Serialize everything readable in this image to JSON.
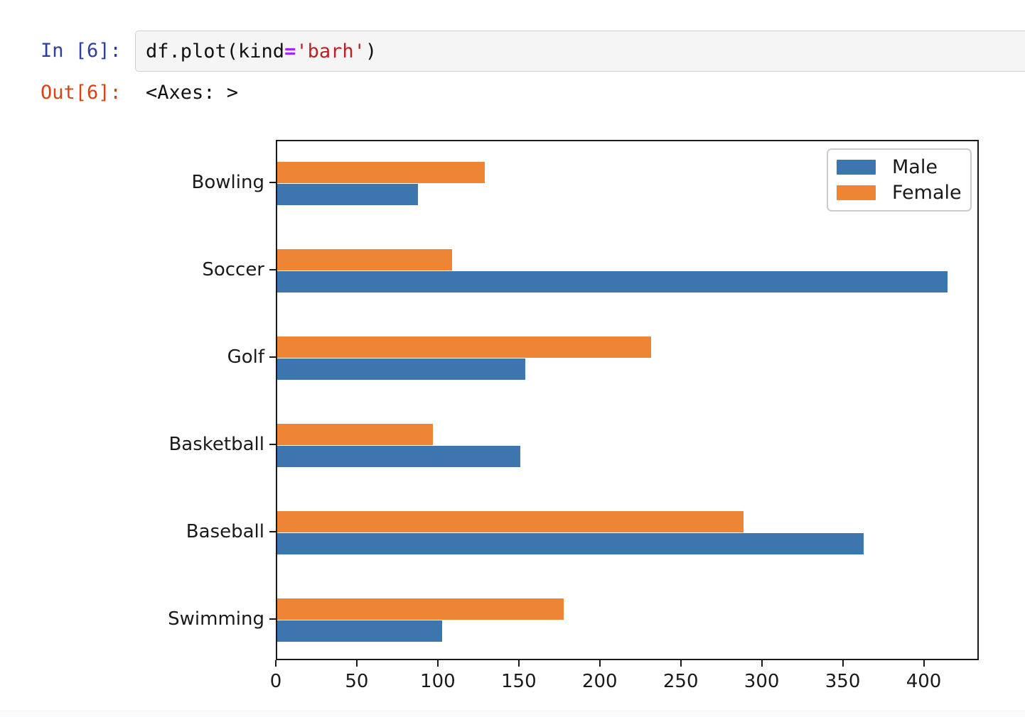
{
  "notebook": {
    "input_prompt": "In [6]:",
    "output_prompt": "Out[6]:",
    "code_tokens": [
      {
        "text": "df.plot(kind",
        "type": "plain"
      },
      {
        "text": "=",
        "type": "operator"
      },
      {
        "text": "'barh'",
        "type": "string"
      },
      {
        "text": ")",
        "type": "plain"
      }
    ],
    "output_text": "<Axes: >"
  },
  "colors": {
    "male_bar": "#3d76af",
    "female_bar": "#ee8535",
    "in_prompt": "#303f9f",
    "out_prompt": "#d84315",
    "operator_token": "#aa22ff",
    "string_token": "#ba2121",
    "axis_text": "#1a1a1a"
  },
  "chart_data": {
    "type": "bar",
    "orientation": "horizontal",
    "categories": [
      "Bowling",
      "Soccer",
      "Golf",
      "Basketball",
      "Baseball",
      "Swimming"
    ],
    "series": [
      {
        "name": "Male",
        "color": "#3d76af",
        "values": [
          87,
          414,
          153,
          150,
          362,
          102
        ]
      },
      {
        "name": "Female",
        "color": "#ee8535",
        "values": [
          128,
          108,
          231,
          96,
          288,
          177
        ]
      }
    ],
    "xticks": [
      0,
      50,
      100,
      150,
      200,
      250,
      300,
      350,
      400
    ],
    "xlim": [
      0,
      434
    ],
    "xlabel": "",
    "ylabel": "",
    "title": "",
    "grid": false,
    "legend_position": "upper right",
    "legend_entries": [
      "Male",
      "Female"
    ]
  }
}
